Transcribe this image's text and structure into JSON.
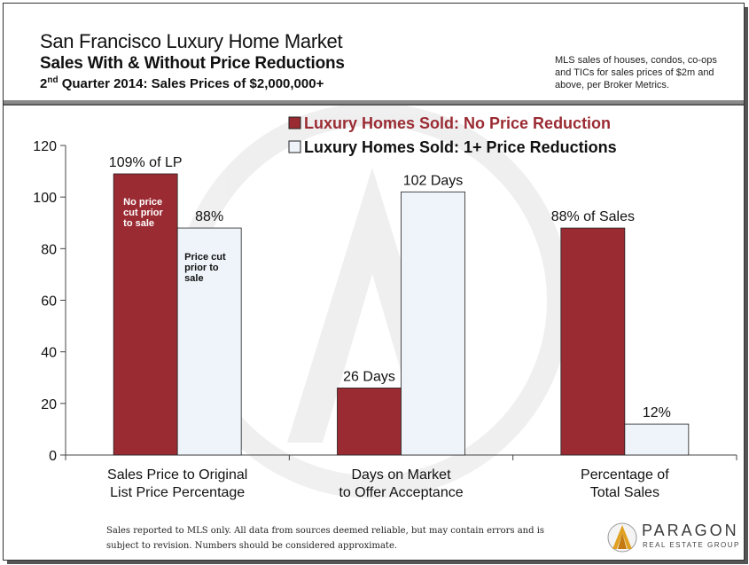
{
  "header": {
    "title_line1": "San Francisco Luxury Home Market",
    "title_line2": "Sales With & Without Price Reductions",
    "title_line3_prefix": "2",
    "title_line3_sup": "nd",
    "title_line3_rest": " Quarter 2014: Sales Prices of $2,000,000+",
    "note": "MLS sales of houses, condos, co-ops and TICs for sales prices of $2m and above, per Broker Metrics."
  },
  "footer": {
    "disclaimer": "Sales reported to MLS only. All data from sources deemed reliable, but may contain errors and is subject to revision. Numbers should be considered approximate.",
    "logo_name": "PARAGON",
    "logo_sub": "REAL ESTATE GROUP"
  },
  "colors": {
    "series1": "#9b2b33",
    "series2": "#eef4f9",
    "bar_stroke": "#222222",
    "axis": "#444444"
  },
  "chart_data": {
    "type": "bar",
    "categories": [
      [
        "Sales Price to Original",
        "List Price Percentage"
      ],
      [
        "Days on Market",
        "to Offer Acceptance"
      ],
      [
        "Percentage of",
        "Total Sales"
      ]
    ],
    "series": [
      {
        "name": "Luxury Homes Sold: No Price Reduction",
        "values": [
          109,
          26,
          88
        ]
      },
      {
        "name": "Luxury Homes Sold: 1+ Price Reductions",
        "values": [
          88,
          102,
          12
        ]
      }
    ],
    "data_labels": [
      [
        "109% of LP",
        "26 Days",
        "88% of Sales"
      ],
      [
        "88%",
        "102 Days",
        "12%"
      ]
    ],
    "bar_annotations": [
      {
        "series": 0,
        "category": 0,
        "lines": [
          "No price",
          "cut prior",
          "to sale"
        ]
      },
      {
        "series": 1,
        "category": 0,
        "lines": [
          "Price cut",
          "prior to",
          "sale"
        ]
      }
    ],
    "yticks": [
      0,
      20,
      40,
      60,
      80,
      100,
      120
    ],
    "ylim": [
      0,
      120
    ],
    "grid": false,
    "legend_position": "top"
  }
}
